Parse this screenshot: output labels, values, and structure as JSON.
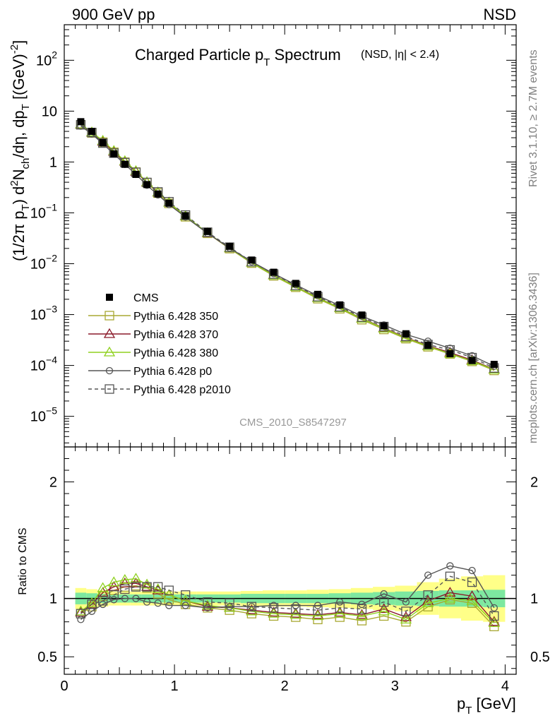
{
  "header": {
    "left": "900 GeV pp",
    "right": "NSD"
  },
  "chart_data": {
    "type": "line",
    "title": "Charged Particle p",
    "title_sub": "T",
    "title_rest": " Spectrum",
    "title_extra": "(NSD, |η| < 2.4)",
    "analysis_tag": "CMS_2010_S8547297",
    "side_text_top": "Rivet 3.1.10, ≥ 2.7M events",
    "side_text_bottom": "mcplots.cern.ch [arXiv:1306.3436]",
    "ylabel_main": "(1/2π p_T) d²N_ch/dη, dp_T [(GeV)⁻²]",
    "ylabel_ratio": "Ratio to CMS",
    "xlabel": "p_T [GeV]",
    "xlim": [
      0,
      4.1
    ],
    "ylim_main": [
      2.5e-06,
      500
    ],
    "y_scale_main": "log",
    "ylim_ratio": [
      0.35,
      2.3
    ],
    "x_ticks": [
      "0",
      "1",
      "2",
      "3",
      "4"
    ],
    "y_ticks_main": [
      {
        "base": "10",
        "exp": "2"
      },
      {
        "base": "10",
        "exp": ""
      },
      {
        "base": "1",
        "exp": ""
      },
      {
        "base": "10",
        "exp": "−1"
      },
      {
        "base": "10",
        "exp": "−2"
      },
      {
        "base": "10",
        "exp": "−3"
      },
      {
        "base": "10",
        "exp": "−4"
      },
      {
        "base": "10",
        "exp": "−5"
      }
    ],
    "y_ticks_ratio": [
      "2",
      "1",
      "0.5"
    ],
    "legend_position": "middle-left",
    "x": [
      0.15,
      0.25,
      0.35,
      0.45,
      0.55,
      0.65,
      0.75,
      0.85,
      0.95,
      1.1,
      1.3,
      1.5,
      1.7,
      1.9,
      2.1,
      2.3,
      2.5,
      2.7,
      2.9,
      3.1,
      3.3,
      3.5,
      3.7,
      3.9
    ],
    "data": {
      "name": "CMS",
      "color": "#000000",
      "values": [
        6.2,
        4.0,
        2.4,
        1.45,
        0.9,
        0.57,
        0.36,
        0.235,
        0.155,
        0.088,
        0.043,
        0.022,
        0.0118,
        0.0068,
        0.0041,
        0.0025,
        0.00155,
        0.00098,
        0.0006,
        0.00042,
        0.00025,
        0.00017,
        0.000125,
        0.000105
      ],
      "ratio_band_inner": [
        0.05,
        0.045,
        0.04,
        0.035,
        0.035,
        0.035,
        0.035,
        0.035,
        0.035,
        0.035,
        0.035,
        0.035,
        0.04,
        0.04,
        0.04,
        0.04,
        0.045,
        0.05,
        0.055,
        0.06,
        0.065,
        0.07,
        0.07,
        0.075
      ],
      "ratio_band_outer": [
        0.09,
        0.08,
        0.07,
        0.06,
        0.06,
        0.06,
        0.06,
        0.06,
        0.06,
        0.06,
        0.06,
        0.06,
        0.065,
        0.07,
        0.07,
        0.075,
        0.08,
        0.09,
        0.1,
        0.11,
        0.14,
        0.17,
        0.19,
        0.2
      ]
    },
    "series": [
      {
        "name": "Pythia 6.428 350",
        "color": "#a8a832",
        "marker": "square-open",
        "dash": false,
        "ratio": [
          0.87,
          0.93,
          1.02,
          1.07,
          1.1,
          1.11,
          1.09,
          1.04,
          0.99,
          0.95,
          0.92,
          0.9,
          0.87,
          0.85,
          0.84,
          0.82,
          0.84,
          0.81,
          0.85,
          0.8,
          0.93,
          0.99,
          0.96,
          0.76
        ]
      },
      {
        "name": "Pythia 6.428 370",
        "color": "#8b1a2a",
        "marker": "triangle-open",
        "dash": false,
        "ratio": [
          0.88,
          0.95,
          1.05,
          1.1,
          1.13,
          1.13,
          1.1,
          1.07,
          1.03,
          0.98,
          0.93,
          0.92,
          0.9,
          0.88,
          0.87,
          0.86,
          0.88,
          0.86,
          0.91,
          0.84,
          0.98,
          1.05,
          1.02,
          0.8
        ]
      },
      {
        "name": "Pythia 6.428 380",
        "color": "#8fd11f",
        "marker": "triangle-open",
        "dash": false,
        "ratio": [
          0.89,
          0.96,
          1.09,
          1.14,
          1.16,
          1.17,
          1.12,
          1.08,
          1.03,
          0.98,
          0.94,
          0.92,
          0.89,
          0.87,
          0.86,
          0.85,
          0.87,
          0.85,
          0.89,
          0.82,
          0.96,
          1.0,
          0.98,
          0.79
        ]
      },
      {
        "name": "Pythia 6.428 p0",
        "color": "#555555",
        "marker": "circle-open",
        "dash": false,
        "ratio": [
          0.82,
          0.89,
          0.95,
          0.99,
          1.0,
          1.0,
          0.97,
          0.96,
          0.94,
          0.94,
          0.92,
          0.93,
          0.93,
          0.94,
          0.94,
          0.94,
          0.97,
          0.95,
          1.04,
          0.97,
          1.2,
          1.28,
          1.24,
          0.92
        ]
      },
      {
        "name": "Pythia 6.428 p2010",
        "color": "#555555",
        "marker": "square-open",
        "dash": true,
        "ratio": [
          0.87,
          0.95,
          0.98,
          1.03,
          1.08,
          1.1,
          1.1,
          1.1,
          1.07,
          1.03,
          0.97,
          0.96,
          0.93,
          0.92,
          0.91,
          0.9,
          0.92,
          0.91,
          0.97,
          0.89,
          1.03,
          1.19,
          1.14,
          0.85
        ]
      }
    ]
  }
}
